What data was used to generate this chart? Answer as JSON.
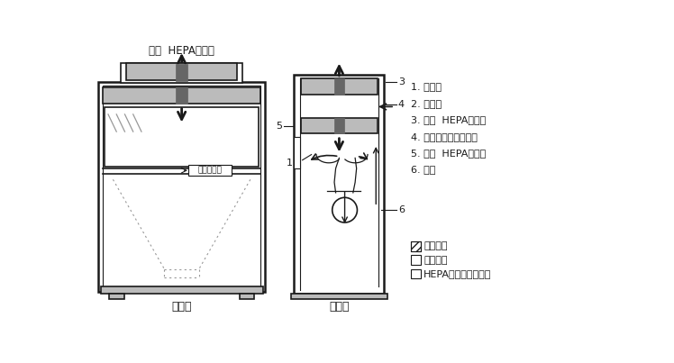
{
  "background": "#ffffff",
  "front_label": "正面图",
  "side_label": "侧面图",
  "top_label": "排风  HEPA过滤器",
  "annotation_box": "正压污染区",
  "legend_items": [
    {
      "label": "房间空气",
      "hatch": "////"
    },
    {
      "label": "污染空气",
      "hatch": ""
    },
    {
      "label": "HEPA过滤器过滤空气",
      "hatch": ""
    }
  ],
  "numbered_items": [
    "1. 前开口",
    "2. 可视窗",
    "3. 排风  HEPA过滤器",
    "4. 后面的压力排风系统",
    "5. 供风  HEPA过滤器",
    "6. 风机"
  ],
  "color_main": "#1a1a1a",
  "color_gray": "#999999",
  "color_lgray": "#bbbbbb",
  "color_dgray": "#666666"
}
